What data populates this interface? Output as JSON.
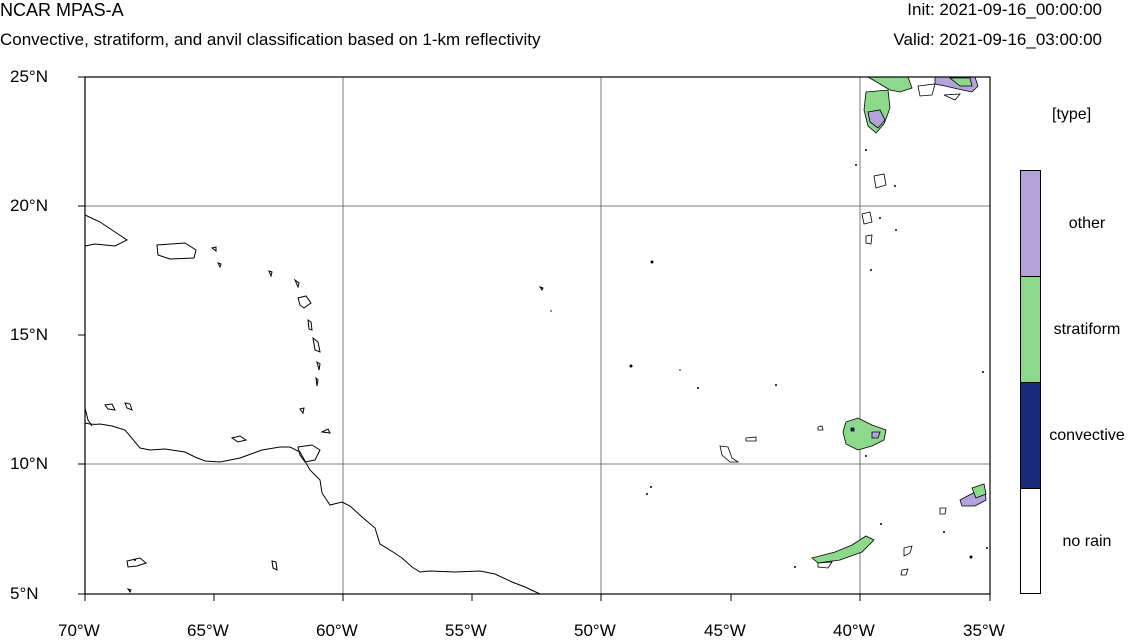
{
  "header": {
    "title": "NCAR MPAS-A",
    "subtitle": "Convective, stratiform, and anvil classification based on 1-km reflectivity",
    "init": "Init: 2021-09-16_00:00:00",
    "valid": "Valid: 2021-09-16_03:00:00"
  },
  "map": {
    "lon_range": [
      -70,
      -35
    ],
    "lat_range": [
      5,
      25
    ],
    "x_ticks": [
      "70°W",
      "65°W",
      "60°W",
      "55°W",
      "50°W",
      "45°W",
      "40°W",
      "35°W"
    ],
    "y_ticks": [
      "25°N",
      "20°N",
      "15°N",
      "10°N",
      "5°N"
    ],
    "grid": true
  },
  "legend": {
    "title": "[type]",
    "entries": [
      {
        "label": "other",
        "color": "#b3a3da"
      },
      {
        "label": "stratiform",
        "color": "#8cd98c"
      },
      {
        "label": "convective",
        "color": "#1a2a7a"
      },
      {
        "label": "no rain",
        "color": "#ffffff"
      }
    ]
  }
}
